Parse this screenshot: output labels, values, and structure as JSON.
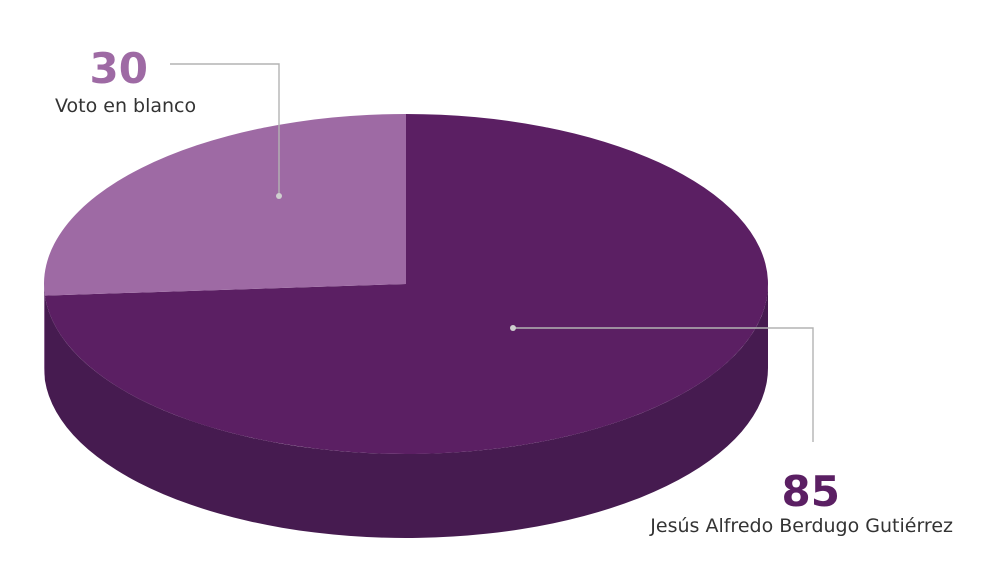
{
  "chart_data": {
    "type": "pie",
    "style": "3d",
    "title": "",
    "slices": [
      {
        "label": "Jesús Alfredo Berdugo Gutiérrez",
        "value": 85,
        "value_label": "85",
        "color": "#5b1f63",
        "side_color": "#461b50",
        "label_color": "#5b1f63"
      },
      {
        "label": "Voto en blanco",
        "value": 30,
        "value_label": "30",
        "color": "#9e6aa4",
        "side_color": "#7d5185",
        "label_color": "#9e6aa4"
      }
    ],
    "leader_line_color": "#b3b3b3"
  }
}
